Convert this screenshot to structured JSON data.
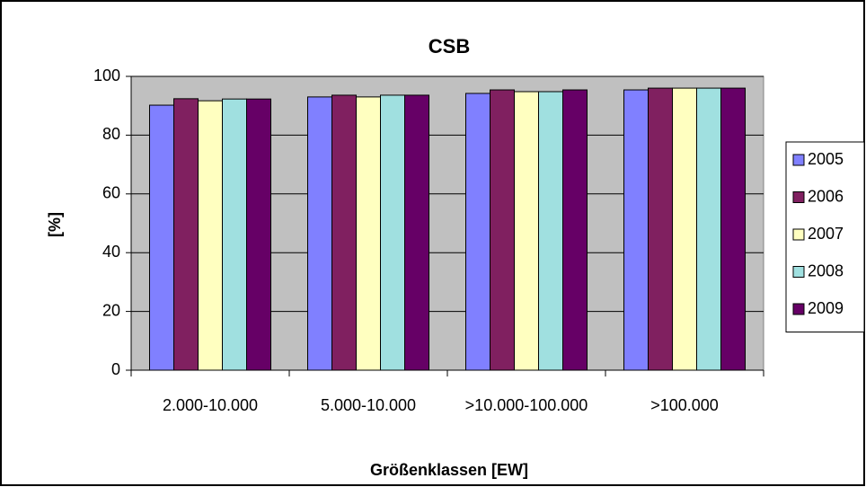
{
  "chart_data": {
    "type": "bar",
    "title": "CSB",
    "x_label": "Größenklassen [EW]",
    "y_label": "[%]",
    "categories": [
      "2.000-10.000",
      "5.000-10.000",
      ">10.000-100.000",
      ">100.000"
    ],
    "series": [
      {
        "name": "2005",
        "color": "#8080ff",
        "values": [
          90.2,
          93.0,
          94.2,
          95.4
        ]
      },
      {
        "name": "2006",
        "color": "#802060",
        "values": [
          92.4,
          93.6,
          95.4,
          96.0
        ]
      },
      {
        "name": "2007",
        "color": "#ffffc0",
        "values": [
          91.7,
          93.0,
          94.8,
          96.0
        ]
      },
      {
        "name": "2008",
        "color": "#a0e0e0",
        "values": [
          92.3,
          93.6,
          94.8,
          96.0
        ]
      },
      {
        "name": "2009",
        "color": "#660066",
        "values": [
          92.3,
          93.6,
          95.4,
          96.0
        ]
      }
    ],
    "ylim": [
      0,
      100
    ],
    "yticks": [
      0,
      20,
      40,
      60,
      80,
      100
    ],
    "grid": true,
    "legend": "right"
  }
}
